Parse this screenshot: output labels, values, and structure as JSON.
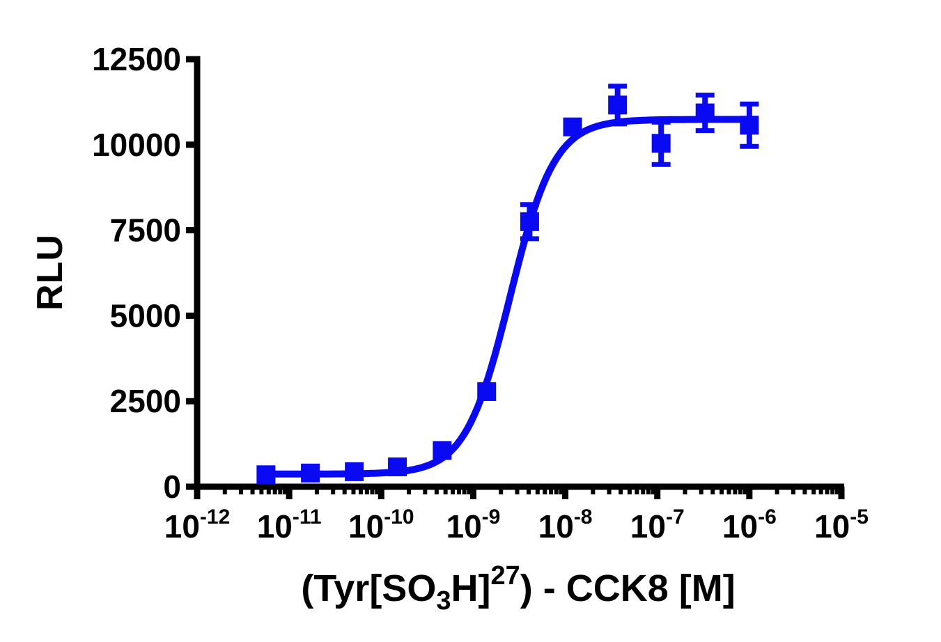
{
  "figure": {
    "background": "#ffffff",
    "axis_color": "#000000",
    "series_color": "#0a0af2",
    "y_axis_title": "RLU",
    "x_axis_title_parts": {
      "pre": "(Tyr[SO",
      "sub": "3",
      "mid": "H]",
      "sup": "27",
      "post": ") - CCK8 [M]"
    }
  },
  "chart_data": {
    "type": "scatter",
    "title": "",
    "xlabel": "(Tyr[SO3H]27) - CCK8 [M]",
    "ylabel": "RLU",
    "x_scale": "log10",
    "x_log_range": [
      -12,
      -5
    ],
    "ylim": [
      0,
      12500
    ],
    "y_ticks": [
      0,
      2500,
      5000,
      7500,
      10000,
      12500
    ],
    "x_tick_base": "10",
    "x_tick_exponents": [
      "-12",
      "-11",
      "-10",
      "-9",
      "-8",
      "-7",
      "-6",
      "-5"
    ],
    "x_minor_ticks_per_decade": [
      2,
      3,
      4,
      5,
      6,
      7,
      8,
      9
    ],
    "grid": false,
    "legend": "none",
    "series": [
      {
        "name": "(Tyr[SO3H]27) - CCK8",
        "marker": "filled-square",
        "color": "#0a0af2",
        "points": [
          {
            "conc_M": 5.6e-12,
            "rlu": 350,
            "err_rlu": 0
          },
          {
            "conc_M": 1.7e-11,
            "rlu": 400,
            "err_rlu": 0
          },
          {
            "conc_M": 5.1e-11,
            "rlu": 440,
            "err_rlu": 0
          },
          {
            "conc_M": 1.5e-10,
            "rlu": 580,
            "err_rlu": 0
          },
          {
            "conc_M": 4.6e-10,
            "rlu": 1060,
            "err_rlu": 0
          },
          {
            "conc_M": 1.4e-09,
            "rlu": 2780,
            "err_rlu": 0
          },
          {
            "conc_M": 4.1e-09,
            "rlu": 7750,
            "err_rlu": 500
          },
          {
            "conc_M": 1.2e-08,
            "rlu": 10520,
            "err_rlu": 0
          },
          {
            "conc_M": 3.7e-08,
            "rlu": 11160,
            "err_rlu": 550
          },
          {
            "conc_M": 1.1e-07,
            "rlu": 10040,
            "err_rlu": 620
          },
          {
            "conc_M": 3.3e-07,
            "rlu": 10930,
            "err_rlu": 520
          },
          {
            "conc_M": 1e-06,
            "rlu": 10570,
            "err_rlu": 620
          }
        ],
        "fit": {
          "model": "four-parameter-logistic",
          "bottom": 370,
          "top": 10740,
          "log_ec50": -8.6,
          "hill_slope": 1.8,
          "log_x_start": -11.23,
          "log_x_end": -6.0
        }
      }
    ]
  }
}
